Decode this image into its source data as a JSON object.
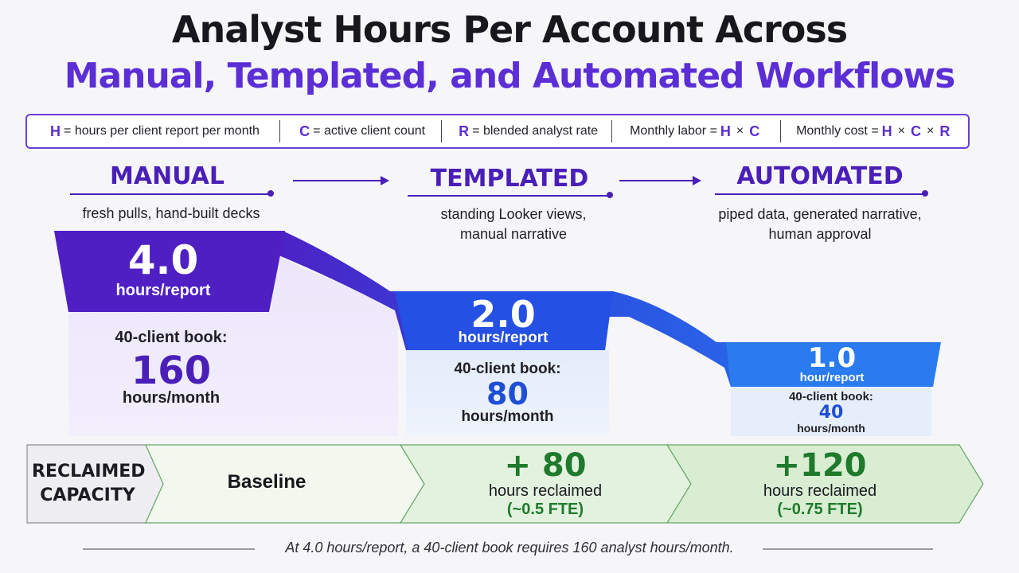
{
  "title": {
    "line1": "Analyst Hours Per Account Across",
    "line2": "Manual, Templated, and Automated Workflows"
  },
  "legend": {
    "h_sym": "H",
    "h_text": "= hours per client report per month",
    "c_sym": "C",
    "c_text": "= active client count",
    "r_sym": "R",
    "r_text": "= blended analyst rate",
    "labor_text": "Monthly labor =",
    "labor_h": "H",
    "labor_times": "×",
    "labor_c": "C",
    "cost_text": "Monthly cost =",
    "cost_h": "H",
    "cost_times1": "×",
    "cost_c": "C",
    "cost_times2": "×",
    "cost_r": "R"
  },
  "stages": [
    {
      "name": "MANUAL",
      "desc1": "fresh pulls, hand-built decks",
      "desc2": "",
      "hours": "4.0",
      "hours_unit": "hours/report",
      "book_label": "40-client book:",
      "monthly": "160",
      "monthly_unit": "hours/month"
    },
    {
      "name": "TEMPLATED",
      "desc1": "standing Looker views,",
      "desc2": "manual narrative",
      "hours": "2.0",
      "hours_unit": "hours/report",
      "book_label": "40-client book:",
      "monthly": "80",
      "monthly_unit": "hours/month"
    },
    {
      "name": "AUTOMATED",
      "desc1": "piped data, generated narrative,",
      "desc2": "human approval",
      "hours": "1.0",
      "hours_unit": "hour/report",
      "book_label": "40-client book:",
      "monthly": "40",
      "monthly_unit": "hours/month"
    }
  ],
  "reclaimed": {
    "label_line1": "RECLAIMED",
    "label_line2": "CAPACITY",
    "baseline": "Baseline",
    "templated_num": "+ 80",
    "templated_unit": "hours reclaimed",
    "templated_fte": "(~0.5 FTE)",
    "automated_num": "+120",
    "automated_unit": "hours reclaimed",
    "automated_fte": "(~0.75 FTE)"
  },
  "footer": "At 4.0 hours/report, a 40-client book requires 160 analyst hours/month.",
  "colors": {
    "purple": "#4f1fc4",
    "blue": "#1f5be6",
    "light_blue": "#2a7bf0",
    "green": "#1f7a2c"
  }
}
